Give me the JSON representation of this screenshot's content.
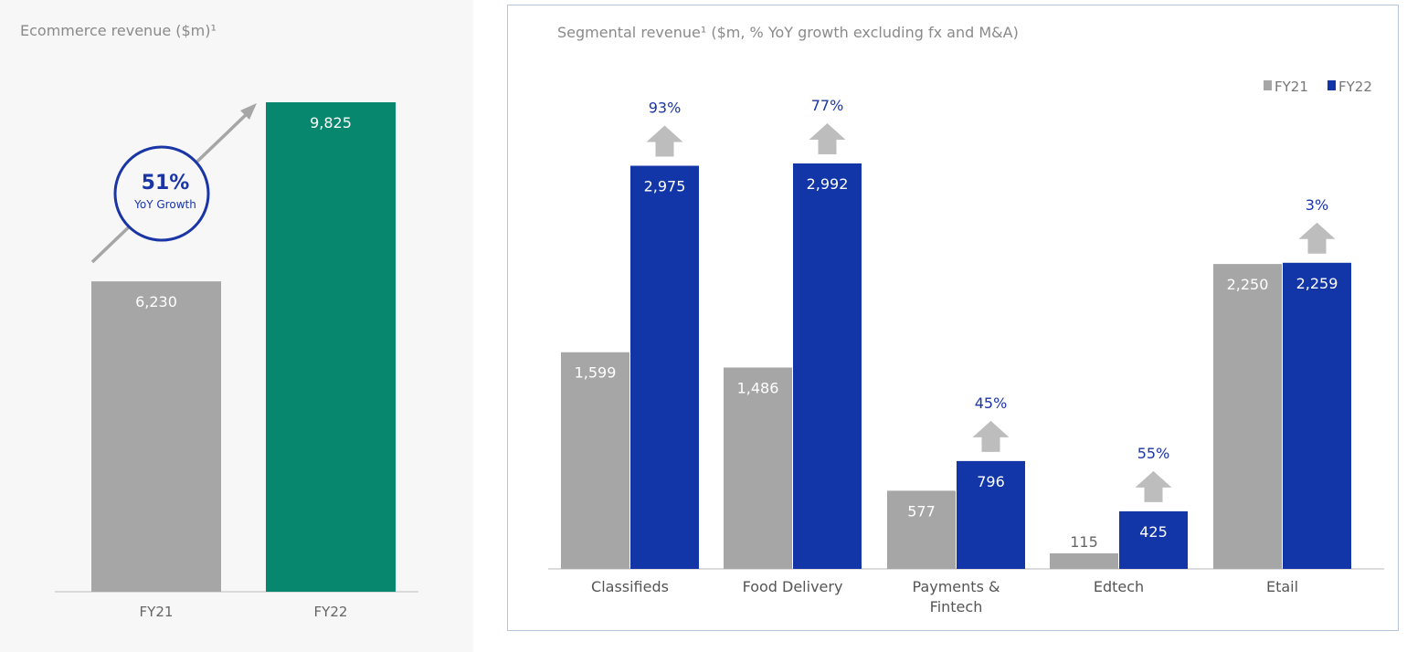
{
  "chart_data": [
    {
      "type": "bar",
      "title": "Ecommerce revenue ($m)¹",
      "categories": [
        "FY21",
        "FY22"
      ],
      "values": [
        6230,
        9825
      ],
      "value_labels": [
        "6,230",
        "9,825"
      ],
      "colors": [
        "#a6a6a6",
        "#07876d"
      ],
      "annotation": {
        "value": "51%",
        "label": "YoY Growth",
        "color": "#1a35a6"
      },
      "ylim": [
        0,
        9825
      ],
      "grid": false
    },
    {
      "type": "bar",
      "title": "Segmental revenue¹ ($m, % YoY growth excluding fx and M&A)",
      "categories": [
        "Classifieds",
        "Food Delivery",
        "Payments & Fintech",
        "Edtech",
        "Etail"
      ],
      "category_lines": [
        [
          "Classifieds"
        ],
        [
          "Food Delivery"
        ],
        [
          "Payments &",
          "Fintech"
        ],
        [
          "Edtech"
        ],
        [
          "Etail"
        ]
      ],
      "series": [
        {
          "name": "FY21",
          "color": "#a6a6a6",
          "values": [
            1599,
            1486,
            577,
            115,
            2250
          ],
          "labels": [
            "1,599",
            "1,486",
            "577",
            "115",
            "2,250"
          ]
        },
        {
          "name": "FY22",
          "color": "#1236a8",
          "values": [
            2975,
            2992,
            796,
            425,
            2259
          ],
          "labels": [
            "2,975",
            "2,992",
            "796",
            "425",
            "2,259"
          ]
        }
      ],
      "growth_labels": [
        "93%",
        "77%",
        "45%",
        "55%",
        "3%"
      ],
      "growth_color": "#1a35a6",
      "arrow_color": "#bdbdbd",
      "legend_position": "top-right",
      "ylim": [
        0,
        2992
      ],
      "grid": false
    }
  ]
}
